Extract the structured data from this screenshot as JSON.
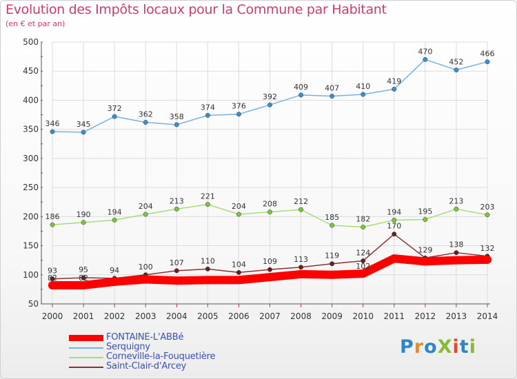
{
  "header": {
    "title": "Evolution des Impôts locaux pour la Commune par Habitant",
    "subtitle": "(en € et par an)"
  },
  "logo": {
    "text": "ProXiti",
    "colors": [
      "#2f86c6",
      "#e98c1e",
      "#2f86c6",
      "#8ab934",
      "#e7452d",
      "#2f86c6",
      "#8ab934"
    ]
  },
  "chart_data": {
    "type": "line",
    "title": "Evolution des Impôts locaux pour la Commune par Habitant",
    "subtitle": "(en € et par an)",
    "xlabel": "",
    "ylabel": "",
    "x": [
      "2000",
      "2001",
      "2002",
      "2003",
      "2004",
      "2005",
      "2006",
      "2007",
      "2008",
      "2009",
      "2010",
      "2011",
      "2012",
      "2013",
      "2014"
    ],
    "ylim": [
      50,
      500
    ],
    "yticks": [
      50,
      100,
      150,
      200,
      250,
      300,
      350,
      400,
      450,
      500
    ],
    "grid": true,
    "legend_position": "bottom-left",
    "series": [
      {
        "name": "FONTAINE-L'ABBé",
        "color": "#ff0000",
        "line_style": "thick",
        "values": [
          82,
          82,
          88,
          92,
          90,
          91,
          91,
          96,
          101,
          100,
          102,
          128,
          123,
          125,
          126
        ],
        "labels": [
          "82",
          "82",
          "",
          "",
          "",
          "",
          "",
          "",
          "",
          "",
          "102",
          "",
          "",
          "",
          ""
        ]
      },
      {
        "name": "Serquigny",
        "color": "#7ab0e0",
        "point_color": "#3a8fd0",
        "values": [
          346,
          345,
          372,
          362,
          358,
          374,
          376,
          392,
          409,
          407,
          410,
          419,
          470,
          452,
          466
        ],
        "labels": [
          "346",
          "345",
          "372",
          "362",
          "358",
          "374",
          "376",
          "392",
          "409",
          "407",
          "410",
          "419",
          "470",
          "452",
          "466"
        ]
      },
      {
        "name": "Corneville-la-Fouquetière",
        "color": "#a8dc78",
        "point_color": "#7cc63c",
        "values": [
          186,
          190,
          194,
          204,
          213,
          221,
          204,
          208,
          212,
          185,
          182,
          194,
          195,
          213,
          203
        ],
        "labels": [
          "186",
          "190",
          "194",
          "204",
          "213",
          "221",
          "204",
          "208",
          "212",
          "185",
          "182",
          "194",
          "195",
          "213",
          "203"
        ]
      },
      {
        "name": "Saint-Clair-d'Arcey",
        "color": "#8b2f2f",
        "point_color": "#6b1e1e",
        "values": [
          93,
          95,
          94,
          100,
          107,
          110,
          104,
          109,
          113,
          119,
          124,
          170,
          129,
          138,
          132
        ],
        "labels": [
          "93",
          "95",
          "94",
          "100",
          "107",
          "110",
          "104",
          "109",
          "113",
          "119",
          "124",
          "170",
          "129",
          "138",
          "132"
        ]
      }
    ]
  }
}
